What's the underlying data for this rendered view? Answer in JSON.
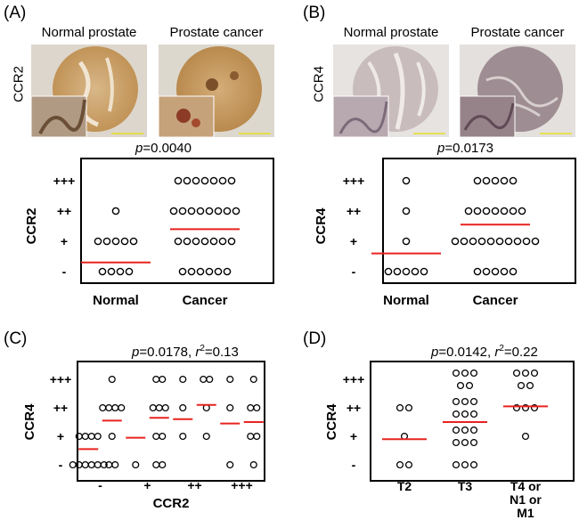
{
  "panels": {
    "A": {
      "label": "(A)",
      "row_label": "CCR2",
      "img_headers": [
        "Normal prostate",
        "Prostate cancer"
      ],
      "p_prefix": "p",
      "p_value": "=0.0040"
    },
    "B": {
      "label": "(B)",
      "row_label": "CCR4",
      "img_headers": [
        "Normal prostate",
        "Prostate cancer"
      ],
      "p_prefix": "p",
      "p_value": "=0.0173"
    },
    "C": {
      "label": "(C)",
      "p_prefix": "p",
      "p_value": "=0.0178, ",
      "r_prefix": "r",
      "r_sup": "2",
      "r_value": "=0.13"
    },
    "D": {
      "label": "(D)",
      "p_prefix": "p",
      "p_value": "=0.0142, ",
      "r_prefix": "r",
      "r_sup": "2",
      "r_value": "=0.22"
    }
  },
  "colors": {
    "median": "#e8231f",
    "tissue_a": "#c9a06a",
    "tissue_b": "#a89298"
  },
  "chart_data": [
    {
      "id": "A",
      "type": "scatter",
      "ylabel": "CCR2",
      "y_levels": [
        "-",
        "+",
        "++",
        "+++"
      ],
      "categories": [
        "Normal",
        "Cancer"
      ],
      "counts": [
        [
          4,
          5,
          1,
          0
        ],
        [
          6,
          7,
          8,
          7
        ]
      ],
      "medians": [
        0.3,
        1.4
      ]
    },
    {
      "id": "B",
      "type": "scatter",
      "ylabel": "CCR4",
      "y_levels": [
        "-",
        "+",
        "++",
        "+++"
      ],
      "categories": [
        "Normal",
        "Cancer"
      ],
      "counts": [
        [
          5,
          1,
          1,
          1
        ],
        [
          5,
          10,
          7,
          5
        ]
      ],
      "medians": [
        0.6,
        1.55
      ]
    },
    {
      "id": "C",
      "type": "scatter",
      "xlabel": "CCR2",
      "ylabel": "CCR4",
      "y_levels": [
        "-",
        "+",
        "++",
        "+++"
      ],
      "x_tick_labels": [
        "-",
        "+",
        "++",
        "+++"
      ],
      "sub_columns": 8,
      "columns": [
        [
          6,
          4,
          0,
          0
        ],
        [
          2,
          1,
          4,
          1
        ],
        [
          1,
          0,
          0,
          0
        ],
        [
          2,
          2,
          3,
          2
        ],
        [
          0,
          1,
          1,
          1
        ],
        [
          0,
          1,
          1,
          2
        ],
        [
          1,
          0,
          1,
          1
        ],
        [
          1,
          2,
          2,
          1
        ]
      ],
      "medians": [
        0.55,
        1.55,
        0.95,
        1.65,
        1.6,
        2.1,
        1.45,
        1.5
      ]
    },
    {
      "id": "D",
      "type": "scatter",
      "ylabel": "CCR4",
      "y_levels": [
        "-",
        "+",
        "++",
        "+++"
      ],
      "categories": [
        "T2",
        "T3",
        [
          "T4 or",
          "N1 or",
          "M1"
        ]
      ],
      "counts": [
        [
          2,
          1,
          2,
          0
        ],
        [
          3,
          6,
          6,
          5
        ],
        [
          0,
          1,
          3,
          5
        ]
      ],
      "medians": [
        0.9,
        1.5,
        2.05
      ]
    }
  ]
}
